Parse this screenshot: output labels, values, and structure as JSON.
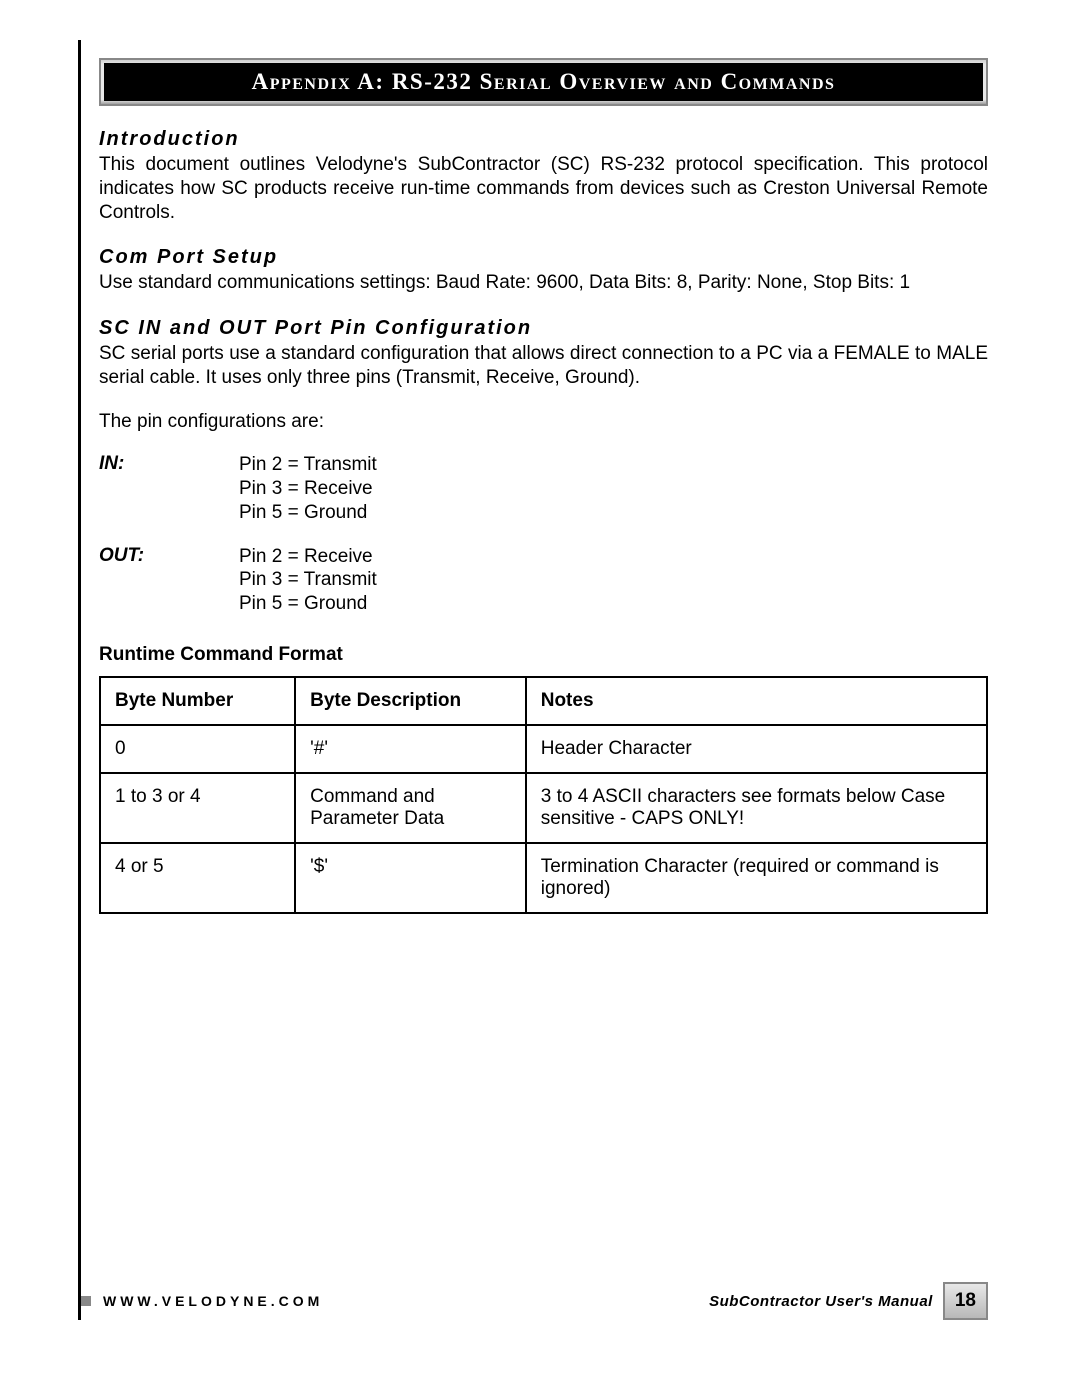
{
  "title_bar": "Appendix A:  RS-232 Serial Overview and Commands",
  "sections": {
    "intro": {
      "heading": "Introduction",
      "body": "This document outlines Velodyne's SubContractor (SC) RS-232 protocol specification. This protocol indicates how SC products receive run-time commands from devices such as Creston Universal Remote Controls."
    },
    "comport": {
      "heading": "Com Port Setup",
      "body": "Use standard communications settings: Baud Rate: 9600, Data Bits: 8, Parity: None,  Stop Bits: 1"
    },
    "pinconfig": {
      "heading": "SC IN and OUT Port Pin Configuration",
      "body": "SC serial ports use a standard configuration that allows direct connection to a PC via a FEMALE to MALE serial cable. It uses only three pins (Transmit, Receive, Ground).",
      "line2": "The pin configurations are:",
      "in_label": "IN:",
      "in_pins": [
        "Pin 2 = Transmit",
        "Pin 3 = Receive",
        "Pin 5 = Ground"
      ],
      "out_label": "OUT:",
      "out_pins": [
        "Pin 2 = Receive",
        "Pin 3 = Transmit",
        "Pin 5 = Ground"
      ]
    },
    "runtime": {
      "subheading": "Runtime Command Format",
      "columns": [
        "Byte Number",
        "Byte Description",
        "Notes"
      ],
      "rows": [
        [
          "0",
          "'#'",
          "Header Character"
        ],
        [
          "1 to 3 or 4",
          "Command and Parameter Data",
          "3 to 4 ASCII characters see formats below Case sensitive - CAPS ONLY!"
        ],
        [
          "4 or 5",
          "'$'",
          "Termination Character (required or command is ignored)"
        ]
      ]
    }
  },
  "footer": {
    "url": "WWW.VELODYNE.COM",
    "manual": "SubContractor User's Manual",
    "page": "18"
  },
  "colors": {
    "heading": "#000000",
    "text": "#000000",
    "border": "#000000",
    "titlebar_bg": "#000000",
    "titlebar_fg": "#ffffff"
  }
}
